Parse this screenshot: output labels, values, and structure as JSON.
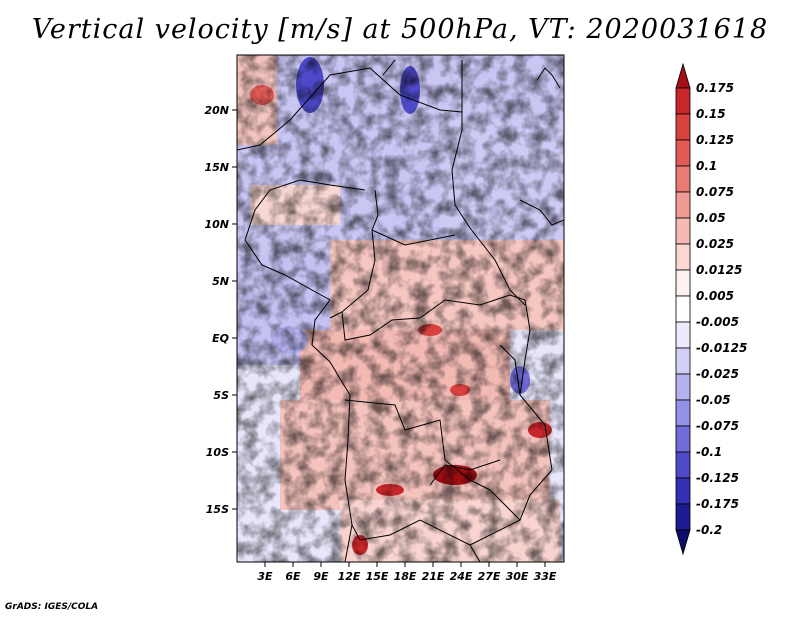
{
  "title": "Vertical velocity [m/s] at 500hPa, VT: 2020031618",
  "footer": "GrADS: IGES/COLA",
  "lat_labels": [
    "20N",
    "15N",
    "10N",
    "5N",
    "EQ",
    "5S",
    "10S",
    "15S"
  ],
  "lon_labels": [
    "3E",
    "6E",
    "9E",
    "12E",
    "15E",
    "18E",
    "21E",
    "24E",
    "27E",
    "30E",
    "33E"
  ],
  "colorbar": {
    "labels": [
      "0.175",
      "0.15",
      "0.125",
      "0.1",
      "0.075",
      "0.05",
      "0.025",
      "0.0125",
      "0.005",
      "-0.005",
      "-0.0125",
      "-0.025",
      "-0.05",
      "-0.075",
      "-0.1",
      "-0.125",
      "-0.175",
      "-0.2"
    ],
    "colors": [
      "#a50f15",
      "#c7262a",
      "#d9413f",
      "#e35b57",
      "#ea7a74",
      "#f09a94",
      "#f5bab5",
      "#fad7d3",
      "#fdf0ee",
      "#ffffff",
      "#ecebfb",
      "#d2d0f6",
      "#b4b1ef",
      "#9491e6",
      "#706cd8",
      "#4e49c8",
      "#3330b3",
      "#1b1b94",
      "#0d0d6b"
    ]
  }
}
